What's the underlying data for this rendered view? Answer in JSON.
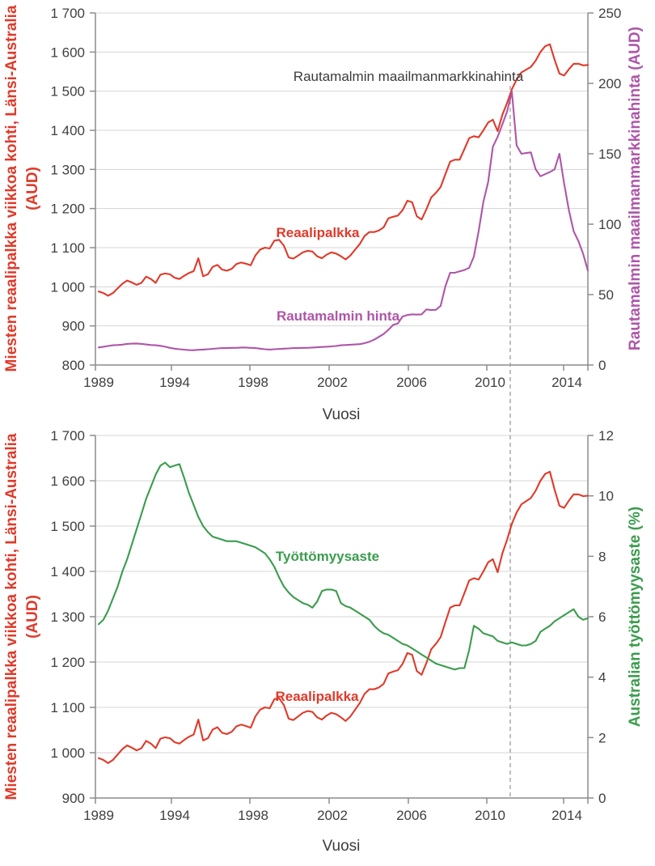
{
  "palette": {
    "wage_red": "#df3a2a",
    "ore_purple": "#ae56a8",
    "unemployment_green": "#3a9c4d",
    "text_dark": "#3b3b3b",
    "tick_text": "#3f3f3f",
    "grid_gray": "#d4d4d4",
    "axis_gray": "#8c8c8c",
    "dashed_gray": "#9b9b9b"
  },
  "chart_data": [
    {
      "type": "line",
      "annotation": "Rautamalmin maailmanmarkkinahinta",
      "x_axis": {
        "title": "Vuosi",
        "tick_labels": [
          "1989",
          "1994",
          "1998",
          "2002",
          "2006",
          "2010",
          "2014"
        ]
      },
      "left_axis": {
        "title_line1": "Miesten reaalipalkka viikkoa kohti, Länsi-Australia",
        "title_line2": "(AUD)",
        "color": "#df3a2a",
        "range": [
          800,
          1700
        ],
        "tick_labels": [
          "1 700",
          "1 600",
          "1 500",
          "1 400",
          "1 300",
          "1 200",
          "1 100",
          "1 000",
          "900",
          "800"
        ],
        "tick_values": [
          1700,
          1600,
          1500,
          1400,
          1300,
          1200,
          1100,
          1000,
          900,
          800
        ]
      },
      "right_axis": {
        "title": "Rautamalmin maailmanmarkkinahinta (AUD)",
        "color": "#ae56a8",
        "range": [
          0,
          250
        ],
        "tick_labels": [
          "250",
          "200",
          "150",
          "100",
          "50",
          "0"
        ],
        "tick_values": [
          250,
          200,
          150,
          100,
          50,
          0
        ]
      },
      "series": [
        {
          "name": "reaalipalkka",
          "label": "Reaalipalkka",
          "axis": "left",
          "color": "#df3a2a",
          "values": [
            988,
            984,
            977,
            984,
            996,
            1008,
            1016,
            1011,
            1005,
            1010,
            1026,
            1020,
            1010,
            1031,
            1034,
            1032,
            1023,
            1020,
            1028,
            1035,
            1040,
            1073,
            1027,
            1032,
            1051,
            1056,
            1044,
            1041,
            1046,
            1058,
            1062,
            1059,
            1055,
            1080,
            1095,
            1100,
            1098,
            1118,
            1120,
            1105,
            1075,
            1072,
            1080,
            1088,
            1092,
            1090,
            1078,
            1073,
            1082,
            1088,
            1085,
            1078,
            1070,
            1080,
            1095,
            1110,
            1130,
            1140,
            1140,
            1144,
            1152,
            1175,
            1179,
            1182,
            1196,
            1220,
            1216,
            1180,
            1172,
            1198,
            1228,
            1240,
            1255,
            1288,
            1320,
            1325,
            1325,
            1352,
            1380,
            1385,
            1382,
            1400,
            1420,
            1427,
            1398,
            1440,
            1470,
            1505,
            1530,
            1548,
            1555,
            1562,
            1578,
            1600,
            1615,
            1620,
            1580,
            1545,
            1540,
            1556,
            1570,
            1570,
            1566,
            1567
          ]
        },
        {
          "name": "rautamalmin-hinta",
          "label": "Rautamalmin hinta",
          "axis": "right",
          "color": "#ae56a8",
          "values": [
            12.5,
            13,
            13.5,
            14,
            14.2,
            14.5,
            15,
            15.2,
            15.3,
            15,
            14.6,
            14.2,
            14,
            13.6,
            13,
            12.2,
            11.6,
            11.2,
            10.9,
            10.6,
            10.5,
            10.8,
            11,
            11.2,
            11.5,
            11.8,
            12,
            12,
            12.2,
            12.2,
            12.4,
            12.4,
            12.2,
            12,
            11.6,
            11.2,
            11,
            11.2,
            11.4,
            11.6,
            11.8,
            12,
            12,
            12.2,
            12.2,
            12.4,
            12.6,
            12.8,
            13,
            13.2,
            13.5,
            14,
            14.2,
            14.4,
            14.6,
            14.8,
            15.5,
            16.5,
            18,
            20,
            22,
            25,
            28.5,
            29.5,
            34.5,
            35.5,
            36,
            35.8,
            36,
            39.5,
            39,
            39.2,
            42,
            56,
            65.5,
            65.5,
            66.5,
            67.5,
            69,
            77,
            95,
            116,
            130,
            155,
            162,
            171,
            180,
            194,
            156,
            150,
            150.5,
            151,
            139,
            134,
            135.5,
            137,
            139,
            150,
            129,
            110,
            95,
            88,
            79,
            67
          ]
        }
      ]
    },
    {
      "type": "line",
      "annotation": "",
      "x_axis": {
        "title": "Vuosi",
        "tick_labels": [
          "1989",
          "1994",
          "1998",
          "2002",
          "2006",
          "2010",
          "2014"
        ]
      },
      "left_axis": {
        "title_line1": "Miesten reaalipalkka viikkoa kohti, Länsi-Australia",
        "title_line2": "(AUD)",
        "color": "#df3a2a",
        "range": [
          900,
          1700
        ],
        "tick_labels": [
          "1 700",
          "1 600",
          "1 500",
          "1 400",
          "1 300",
          "1 200",
          "1 100",
          "1 000",
          "900"
        ],
        "tick_values": [
          1700,
          1600,
          1500,
          1400,
          1300,
          1200,
          1100,
          1000,
          900
        ]
      },
      "right_axis": {
        "title": "Australian työttömyysaste (%)",
        "color": "#3a9c4d",
        "range": [
          0,
          12
        ],
        "tick_labels": [
          "12",
          "10",
          "8",
          "6",
          "4",
          "2",
          "0"
        ],
        "tick_values": [
          12,
          10,
          8,
          6,
          4,
          2,
          0
        ]
      },
      "series": [
        {
          "name": "reaalipalkka",
          "label": "Reaalipalkka",
          "axis": "left",
          "color": "#df3a2a",
          "values": [
            988,
            984,
            977,
            984,
            996,
            1008,
            1016,
            1011,
            1005,
            1010,
            1026,
            1020,
            1010,
            1031,
            1034,
            1032,
            1023,
            1020,
            1028,
            1035,
            1040,
            1073,
            1027,
            1032,
            1051,
            1056,
            1044,
            1041,
            1046,
            1058,
            1062,
            1059,
            1055,
            1080,
            1095,
            1100,
            1098,
            1118,
            1120,
            1105,
            1075,
            1072,
            1080,
            1088,
            1092,
            1090,
            1078,
            1073,
            1082,
            1088,
            1085,
            1078,
            1070,
            1080,
            1095,
            1110,
            1130,
            1140,
            1140,
            1144,
            1152,
            1175,
            1179,
            1182,
            1196,
            1220,
            1216,
            1180,
            1172,
            1198,
            1228,
            1240,
            1255,
            1288,
            1320,
            1325,
            1325,
            1352,
            1380,
            1385,
            1382,
            1400,
            1420,
            1427,
            1398,
            1440,
            1470,
            1505,
            1530,
            1548,
            1555,
            1562,
            1578,
            1600,
            1615,
            1620,
            1580,
            1545,
            1540,
            1556,
            1570,
            1570,
            1566,
            1567
          ]
        },
        {
          "name": "tyottomyysaste",
          "label": "Työttömyysaste",
          "axis": "right",
          "color": "#3a9c4d",
          "values": [
            5.75,
            5.9,
            6.2,
            6.6,
            7.0,
            7.5,
            7.9,
            8.4,
            8.9,
            9.4,
            9.9,
            10.3,
            10.7,
            11.0,
            11.1,
            10.95,
            11.0,
            11.05,
            10.6,
            10.1,
            9.7,
            9.3,
            9.0,
            8.8,
            8.65,
            8.6,
            8.55,
            8.5,
            8.5,
            8.5,
            8.45,
            8.4,
            8.35,
            8.3,
            8.2,
            8.1,
            7.9,
            7.65,
            7.3,
            7.0,
            6.8,
            6.65,
            6.55,
            6.45,
            6.4,
            6.3,
            6.5,
            6.85,
            6.9,
            6.9,
            6.85,
            6.45,
            6.35,
            6.3,
            6.2,
            6.1,
            6.0,
            5.9,
            5.7,
            5.55,
            5.45,
            5.4,
            5.3,
            5.2,
            5.1,
            5.05,
            4.95,
            4.85,
            4.75,
            4.65,
            4.55,
            4.45,
            4.4,
            4.35,
            4.3,
            4.25,
            4.3,
            4.3,
            4.9,
            5.7,
            5.6,
            5.45,
            5.4,
            5.35,
            5.2,
            5.15,
            5.1,
            5.15,
            5.1,
            5.05,
            5.05,
            5.1,
            5.2,
            5.5,
            5.6,
            5.7,
            5.85,
            5.95,
            6.05,
            6.15,
            6.25,
            6.0,
            5.9,
            5.95
          ]
        }
      ]
    }
  ]
}
